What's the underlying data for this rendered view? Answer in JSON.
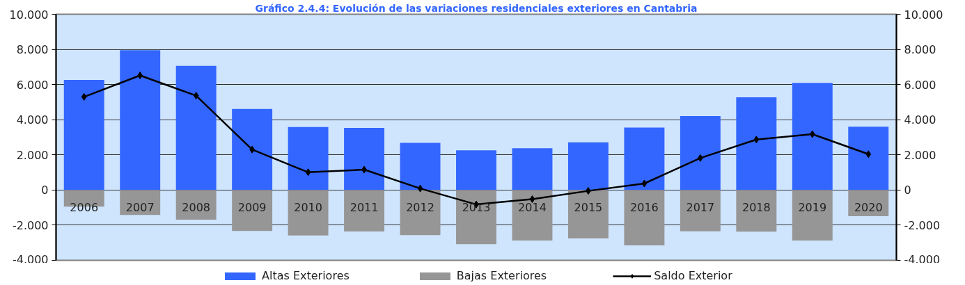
{
  "chart_data": {
    "type": "bar",
    "title": "Gráfico 2.4.4: Evolución de las variaciones residenciales exteriores en Cantabria",
    "categories": [
      "2006",
      "2007",
      "2008",
      "2009",
      "2010",
      "2011",
      "2012",
      "2013",
      "2014",
      "2015",
      "2016",
      "2017",
      "2018",
      "2019",
      "2020"
    ],
    "series": [
      {
        "name": "Altas Exteriores",
        "color": "#3366ff",
        "values": [
          6260,
          7950,
          7060,
          4610,
          3580,
          3530,
          2680,
          2260,
          2380,
          2710,
          3550,
          4210,
          5270,
          6090,
          3600
        ]
      },
      {
        "name": "Bajas Exteriores",
        "color": "#969696",
        "values": [
          -940,
          -1420,
          -1690,
          -2330,
          -2590,
          -2360,
          -2570,
          -3080,
          -2870,
          -2750,
          -3150,
          -2350,
          -2370,
          -2870,
          -1490
        ]
      },
      {
        "name": "Saldo Exterior",
        "type": "line",
        "color": "#000000",
        "values": [
          5300,
          6520,
          5370,
          2300,
          1010,
          1160,
          90,
          -820,
          -520,
          -50,
          370,
          1820,
          2870,
          3180,
          2040
        ]
      }
    ],
    "stacked": true,
    "marker": "diamond",
    "line_style": "solid",
    "ylim": [
      -4000,
      10000
    ],
    "yticks": [
      {
        "value": -4000,
        "label": "-4.000"
      },
      {
        "value": -2000,
        "label": "-2.000"
      },
      0,
      {
        "value": 2000,
        "label": "2.000"
      },
      {
        "value": 4000,
        "label": "4.000"
      },
      {
        "value": 6000,
        "label": "6.000"
      },
      {
        "value": 8000,
        "label": "8.000"
      },
      {
        "value": 10000,
        "label": "10.000"
      }
    ],
    "y2lim": [
      -4000,
      10000
    ],
    "y2ticks": [
      {
        "value": -4000,
        "label": "-4.000"
      },
      {
        "value": -2000,
        "label": "-2.000"
      },
      0,
      {
        "value": 2000,
        "label": "2.000"
      },
      {
        "value": 4000,
        "label": "4.000"
      },
      {
        "value": 6000,
        "label": "6.000"
      },
      {
        "value": 8000,
        "label": "8.000"
      },
      {
        "value": 10000,
        "label": "10.000"
      }
    ],
    "grid": "y",
    "legend": "bottom"
  }
}
